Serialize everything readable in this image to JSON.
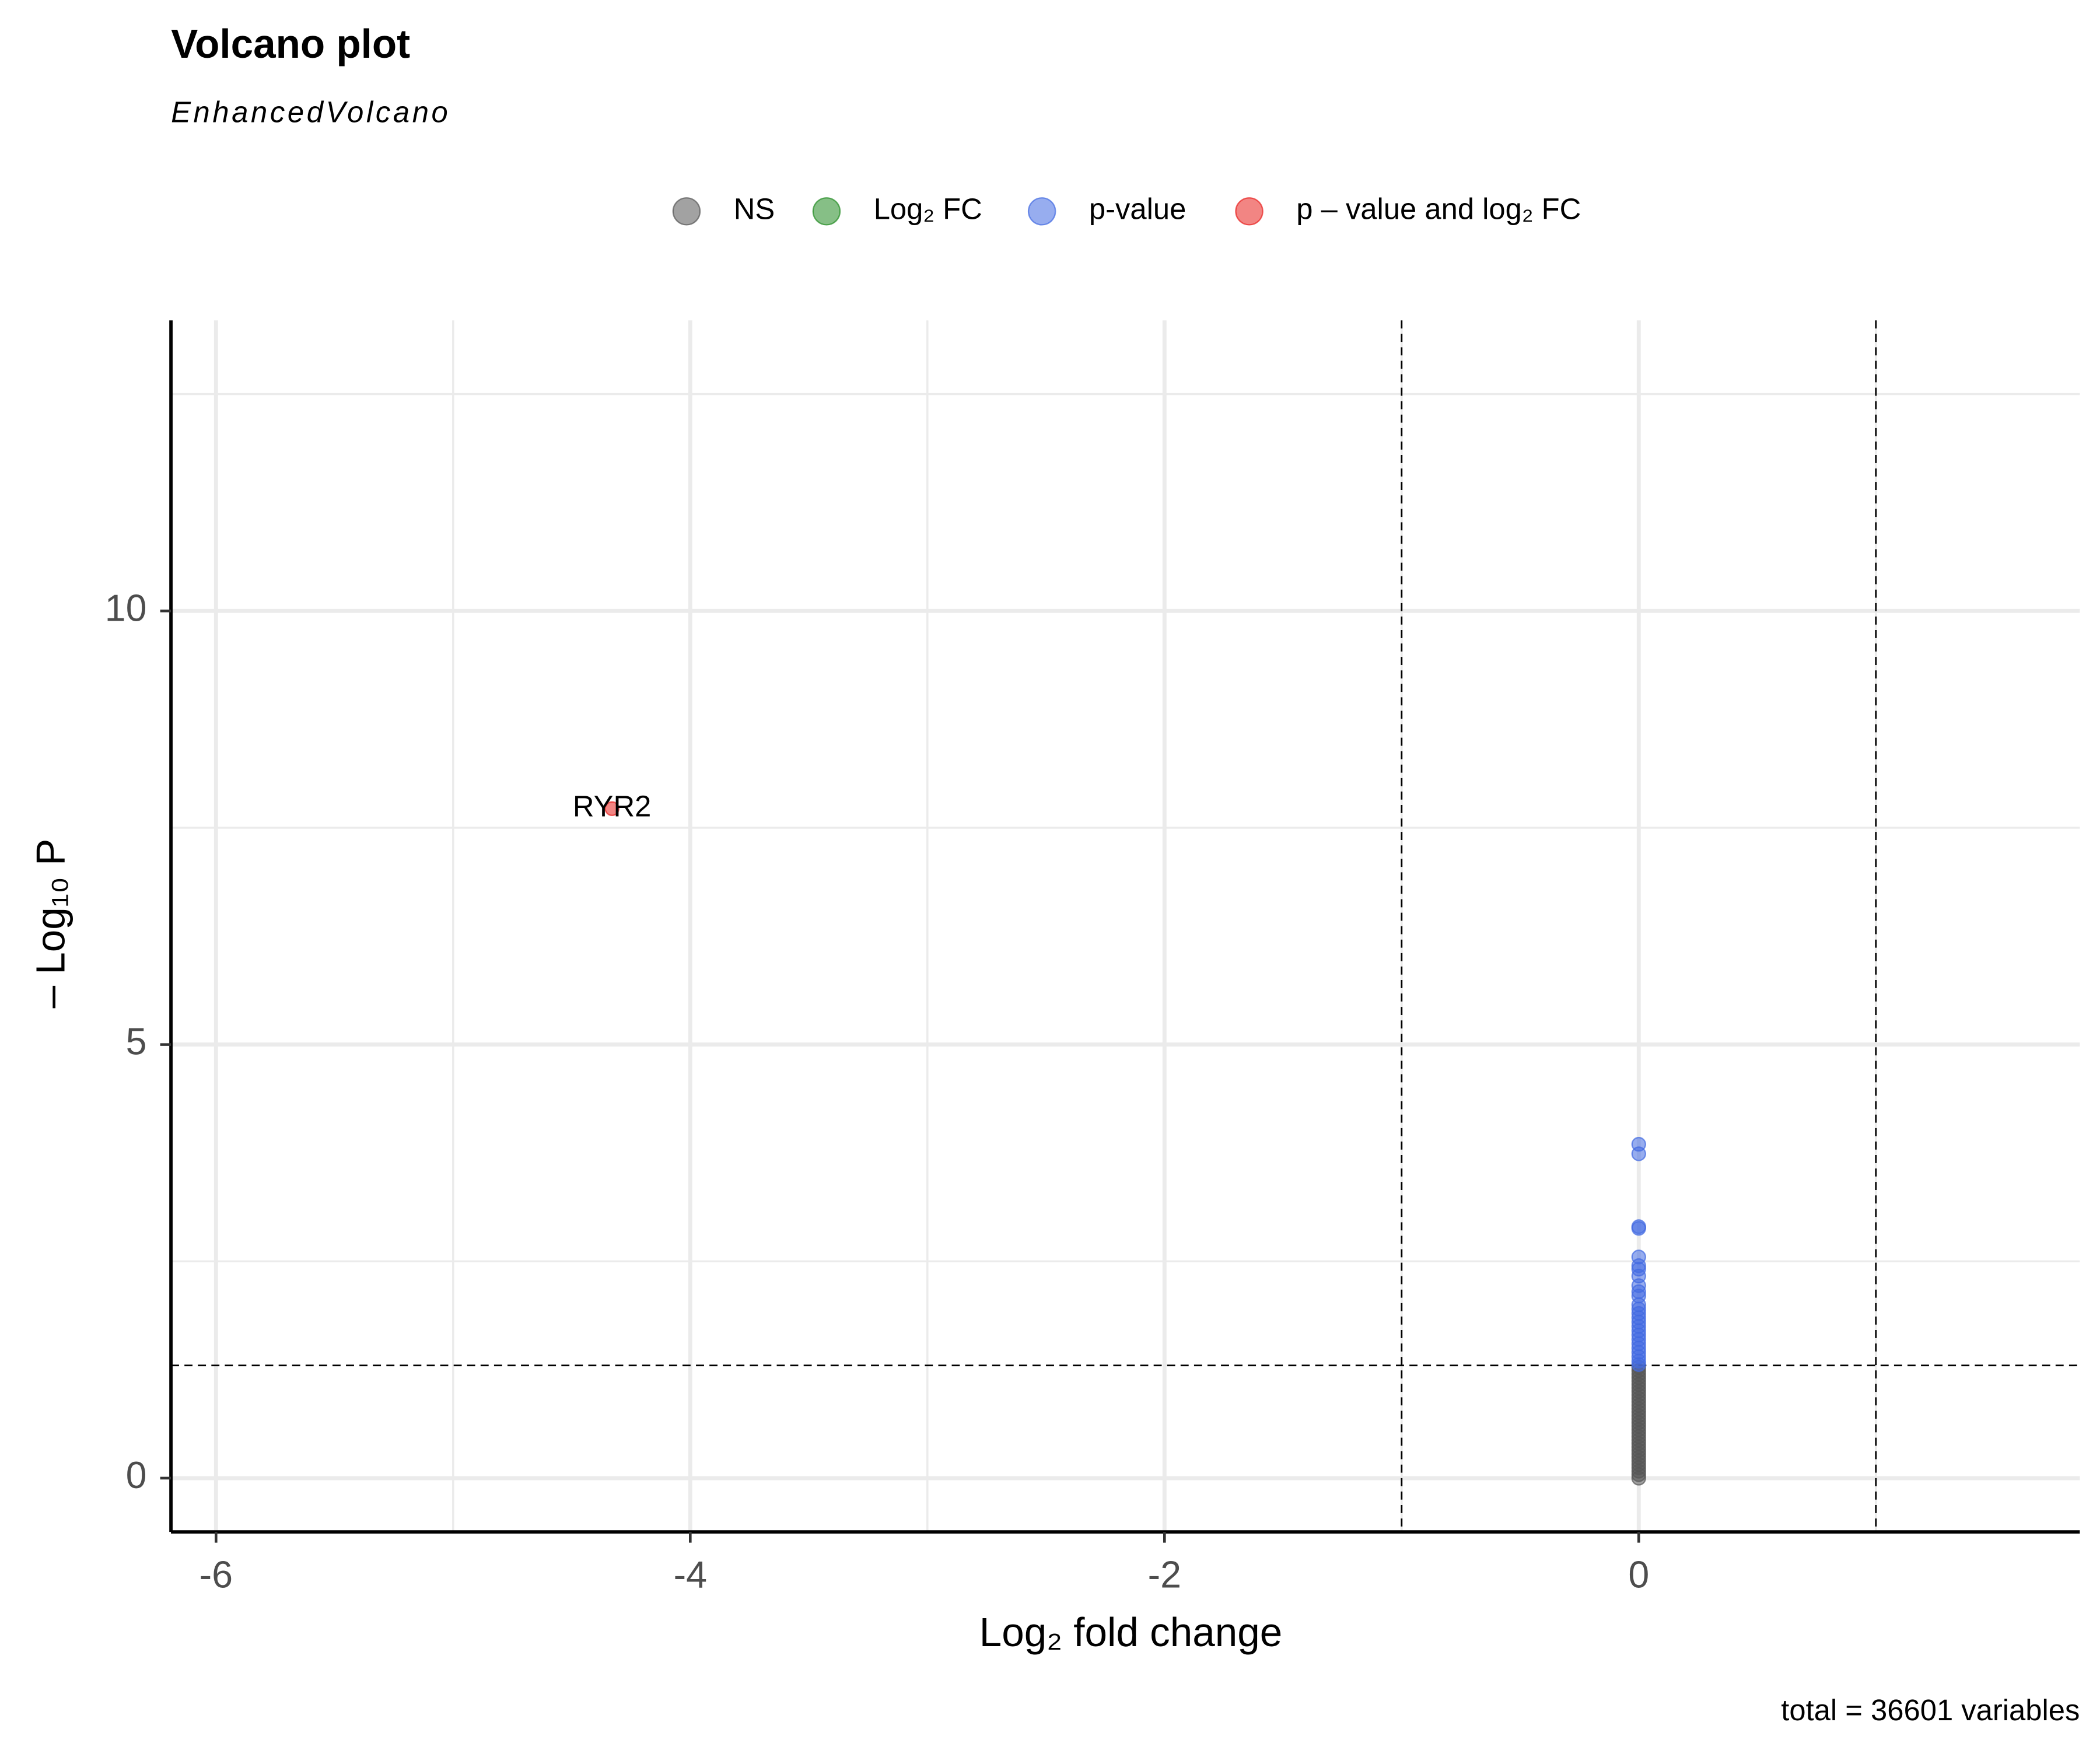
{
  "chart_data": {
    "type": "scatter",
    "title": "Volcano plot",
    "subtitle": "EnhancedVolcano",
    "xlabel": "Log₂ fold change",
    "ylabel": "– Log₁₀ P",
    "caption": "total = 36601 variables",
    "xlim": [
      -6.19,
      1.86
    ],
    "ylim": [
      -0.62,
      13.35
    ],
    "xticks": [
      -6,
      -4,
      -2,
      0
    ],
    "yticks": [
      0,
      5,
      10
    ],
    "x_minor_grid": [
      -5,
      -3,
      -1,
      1
    ],
    "y_minor_grid": [
      2.5,
      7.5,
      12.5
    ],
    "cutoff_lines": {
      "x": [
        -1,
        1
      ],
      "y": 1.3
    },
    "grid": true,
    "legend": "top",
    "series": [
      {
        "name": "NS",
        "color": "#555555",
        "x": [
          0,
          0,
          0,
          0,
          0,
          0,
          0,
          0,
          0,
          0,
          0,
          0,
          0,
          0,
          0,
          0,
          0,
          0,
          0,
          0,
          0,
          0,
          0,
          0,
          0,
          0,
          0,
          0,
          0,
          0,
          0,
          0,
          0
        ],
        "values": [
          0,
          0.04,
          0.08,
          0.12,
          0.16,
          0.2,
          0.24,
          0.28,
          0.32,
          0.36,
          0.4,
          0.44,
          0.48,
          0.52,
          0.56,
          0.6,
          0.64,
          0.68,
          0.72,
          0.76,
          0.8,
          0.84,
          0.88,
          0.92,
          0.96,
          1.0,
          1.04,
          1.08,
          1.12,
          1.16,
          1.2,
          1.24,
          1.28
        ]
      },
      {
        "name": "Log₂ FC",
        "color": "#228b22",
        "x": [],
        "values": []
      },
      {
        "name": "p-value",
        "color": "#4169e1",
        "x": [
          0,
          0,
          0,
          0,
          0,
          0,
          0,
          0,
          0,
          0,
          0,
          0,
          0,
          0,
          0,
          0,
          0,
          0,
          0,
          0,
          0,
          0,
          0,
          0,
          0,
          0
        ],
        "values": [
          3.85,
          3.74,
          2.9,
          2.88,
          2.55,
          2.45,
          2.41,
          2.33,
          2.22,
          2.15,
          2.1,
          2.0,
          1.95,
          1.9,
          1.85,
          1.8,
          1.75,
          1.7,
          1.65,
          1.6,
          1.55,
          1.5,
          1.45,
          1.4,
          1.35,
          1.31
        ]
      },
      {
        "name": "p – value and log₂ FC",
        "color": "#e8201e",
        "x": [
          -4.33
        ],
        "values": [
          7.72
        ],
        "labels": [
          "RYR2"
        ]
      }
    ]
  }
}
